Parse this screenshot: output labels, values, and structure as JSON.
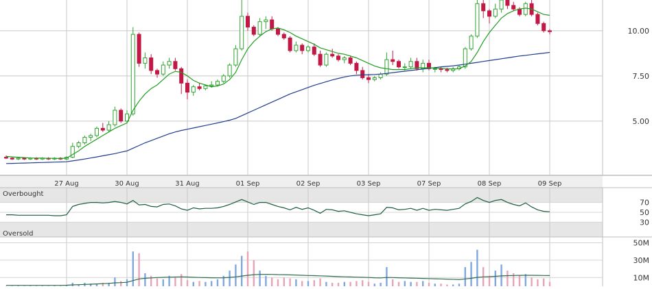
{
  "chart_data": {
    "type": "candlestick",
    "price_axis_ticks": [
      "10.00",
      "7.50",
      "5.00"
    ],
    "price_tick_values": [
      10.0,
      7.5,
      5.0
    ],
    "x_ticks": [
      "27 Aug",
      "30 Aug",
      "31 Aug",
      "01 Sep",
      "02 Sep",
      "03 Sep",
      "07 Sep",
      "08 Sep",
      "09 Sep"
    ],
    "x_tick_index": [
      10,
      20,
      30,
      40,
      50,
      60,
      70,
      80,
      90
    ],
    "indicator_panel": {
      "overbought_label": "Overbought",
      "oversold_label": "Oversold",
      "ticks": [
        "70",
        "50",
        "30"
      ],
      "tick_values": [
        70,
        50,
        30
      ],
      "ylim": [
        0,
        100
      ],
      "band_high": 70,
      "band_low": 30
    },
    "volume_panel": {
      "ticks": [
        "50M",
        "30M",
        "10M"
      ],
      "tick_values": [
        50,
        30,
        10
      ],
      "ylim": [
        0,
        65
      ]
    },
    "price_ylim": [
      2.0,
      11.7
    ],
    "colors": {
      "up": "#2ea32e",
      "down": "#c21845",
      "ma_short": "#1f9c1f",
      "ma_long": "#1e3c8c",
      "indicator_line": "#1a5c3c",
      "volume_up": "#7fa7e0",
      "volume_down": "#e9a3b6"
    },
    "candles": [
      [
        3.0,
        3.1,
        2.9,
        2.95
      ],
      [
        2.95,
        3.0,
        2.85,
        2.9
      ],
      [
        2.9,
        3.0,
        2.85,
        2.95
      ],
      [
        2.95,
        3.0,
        2.85,
        2.9
      ],
      [
        2.9,
        3.0,
        2.85,
        2.95
      ],
      [
        2.95,
        3.0,
        2.85,
        2.9
      ],
      [
        2.9,
        3.0,
        2.85,
        2.95
      ],
      [
        2.95,
        3.0,
        2.85,
        2.9
      ],
      [
        2.9,
        3.0,
        2.85,
        2.95
      ],
      [
        2.95,
        3.0,
        2.85,
        2.9
      ],
      [
        2.9,
        3.05,
        2.85,
        3.0
      ],
      [
        3.0,
        3.8,
        2.95,
        3.6
      ],
      [
        3.6,
        3.9,
        3.5,
        3.8
      ],
      [
        3.8,
        4.2,
        3.7,
        4.1
      ],
      [
        4.1,
        4.3,
        3.9,
        4.2
      ],
      [
        4.2,
        4.7,
        4.1,
        4.6
      ],
      [
        4.6,
        4.9,
        4.4,
        4.5
      ],
      [
        4.5,
        5.0,
        4.4,
        4.8
      ],
      [
        4.8,
        5.8,
        4.7,
        5.6
      ],
      [
        5.6,
        5.7,
        4.9,
        5.0
      ],
      [
        5.0,
        5.6,
        4.9,
        5.4
      ],
      [
        5.4,
        10.2,
        5.3,
        9.8
      ],
      [
        9.8,
        9.9,
        8.0,
        8.2
      ],
      [
        8.2,
        8.8,
        7.9,
        8.5
      ],
      [
        8.5,
        8.7,
        7.6,
        7.8
      ],
      [
        7.8,
        7.9,
        7.4,
        7.6
      ],
      [
        7.6,
        8.3,
        7.5,
        8.1
      ],
      [
        8.1,
        8.5,
        7.9,
        8.3
      ],
      [
        8.3,
        8.5,
        7.8,
        7.9
      ],
      [
        7.9,
        8.0,
        6.5,
        7.1
      ],
      [
        7.1,
        7.3,
        6.2,
        6.6
      ],
      [
        6.6,
        7.0,
        6.4,
        6.9
      ],
      [
        6.9,
        7.1,
        6.7,
        6.8
      ],
      [
        6.8,
        7.0,
        6.7,
        6.95
      ],
      [
        6.95,
        7.2,
        6.85,
        7.0
      ],
      [
        7.0,
        7.3,
        6.9,
        7.2
      ],
      [
        7.2,
        7.6,
        7.1,
        7.5
      ],
      [
        7.5,
        8.2,
        7.4,
        8.1
      ],
      [
        8.1,
        9.2,
        8.0,
        9.0
      ],
      [
        9.0,
        12.0,
        8.9,
        10.8
      ],
      [
        10.8,
        11.0,
        10.0,
        10.2
      ],
      [
        10.2,
        10.3,
        9.7,
        9.8
      ],
      [
        9.8,
        10.7,
        9.7,
        10.5
      ],
      [
        10.5,
        10.8,
        10.1,
        10.6
      ],
      [
        10.6,
        10.8,
        10.0,
        10.1
      ],
      [
        10.1,
        10.2,
        9.7,
        9.8
      ],
      [
        9.8,
        9.9,
        9.5,
        9.6
      ],
      [
        9.6,
        9.7,
        8.8,
        8.9
      ],
      [
        8.9,
        9.4,
        8.8,
        9.2
      ],
      [
        9.2,
        9.3,
        8.7,
        8.9
      ],
      [
        8.9,
        9.2,
        8.8,
        9.1
      ],
      [
        9.1,
        9.3,
        8.6,
        8.7
      ],
      [
        8.7,
        8.9,
        8.0,
        8.1
      ],
      [
        8.1,
        8.8,
        8.0,
        8.7
      ],
      [
        8.7,
        9.0,
        8.5,
        8.6
      ],
      [
        8.6,
        8.7,
        8.3,
        8.4
      ],
      [
        8.4,
        8.6,
        8.2,
        8.5
      ],
      [
        8.5,
        8.6,
        8.1,
        8.2
      ],
      [
        8.2,
        8.3,
        7.6,
        7.8
      ],
      [
        7.8,
        8.0,
        7.3,
        7.4
      ],
      [
        7.4,
        7.6,
        7.1,
        7.3
      ],
      [
        7.3,
        7.5,
        7.2,
        7.4
      ],
      [
        7.4,
        7.7,
        7.3,
        7.6
      ],
      [
        7.6,
        8.8,
        7.5,
        8.4
      ],
      [
        8.4,
        8.9,
        8.1,
        8.3
      ],
      [
        8.3,
        8.4,
        7.9,
        8.0
      ],
      [
        8.0,
        8.2,
        7.8,
        8.0
      ],
      [
        8.0,
        8.5,
        7.9,
        8.3
      ],
      [
        8.3,
        8.5,
        7.8,
        7.9
      ],
      [
        7.9,
        8.4,
        7.7,
        8.2
      ],
      [
        8.2,
        8.4,
        7.8,
        7.9
      ],
      [
        7.9,
        8.0,
        7.7,
        7.9
      ],
      [
        7.9,
        8.0,
        7.7,
        7.85
      ],
      [
        7.85,
        7.95,
        7.7,
        7.8
      ],
      [
        7.8,
        8.0,
        7.7,
        7.9
      ],
      [
        7.9,
        8.1,
        7.8,
        8.0
      ],
      [
        8.0,
        9.1,
        7.9,
        9.0
      ],
      [
        9.0,
        9.8,
        8.9,
        9.7
      ],
      [
        9.7,
        12.1,
        9.6,
        11.5
      ],
      [
        11.5,
        11.9,
        10.7,
        11.1
      ],
      [
        11.1,
        11.2,
        10.4,
        10.8
      ],
      [
        10.8,
        11.5,
        10.7,
        11.2
      ],
      [
        11.2,
        12.4,
        11.0,
        11.7
      ],
      [
        11.7,
        11.8,
        11.2,
        11.4
      ],
      [
        11.4,
        11.6,
        11.1,
        11.2
      ],
      [
        11.2,
        11.3,
        10.8,
        10.9
      ],
      [
        10.9,
        11.6,
        10.8,
        11.5
      ],
      [
        11.5,
        11.7,
        10.8,
        10.9
      ],
      [
        10.9,
        11.0,
        10.3,
        10.4
      ],
      [
        10.4,
        10.5,
        9.9,
        10.0
      ],
      [
        10.0,
        10.1,
        9.8,
        9.95
      ]
    ],
    "ma_short": [
      3.05,
      3.02,
      3.0,
      2.98,
      2.96,
      2.95,
      2.95,
      2.94,
      2.94,
      2.93,
      2.95,
      3.15,
      3.35,
      3.6,
      3.8,
      4.0,
      4.2,
      4.4,
      4.6,
      4.75,
      4.9,
      5.6,
      6.1,
      6.5,
      6.8,
      7.0,
      7.3,
      7.6,
      7.75,
      7.7,
      7.5,
      7.25,
      7.1,
      7.0,
      6.9,
      6.95,
      7.05,
      7.3,
      7.7,
      8.4,
      9.0,
      9.4,
      9.7,
      9.95,
      10.1,
      10.15,
      10.05,
      9.9,
      9.7,
      9.55,
      9.4,
      9.25,
      9.05,
      8.95,
      8.85,
      8.75,
      8.7,
      8.6,
      8.5,
      8.35,
      8.2,
      8.05,
      7.95,
      7.9,
      7.85,
      7.85,
      7.85,
      7.9,
      7.95,
      7.95,
      7.95,
      7.93,
      7.92,
      7.9,
      7.88,
      7.9,
      8.05,
      8.3,
      8.8,
      9.4,
      9.9,
      10.3,
      10.7,
      10.95,
      11.1,
      11.2,
      11.25,
      11.2,
      11.05,
      10.9,
      10.85
    ],
    "ma_long": [
      2.65,
      2.66,
      2.67,
      2.68,
      2.69,
      2.7,
      2.71,
      2.72,
      2.73,
      2.74,
      2.75,
      2.8,
      2.85,
      2.9,
      2.96,
      3.02,
      3.08,
      3.14,
      3.2,
      3.28,
      3.35,
      3.5,
      3.65,
      3.8,
      3.92,
      4.05,
      4.17,
      4.3,
      4.4,
      4.48,
      4.55,
      4.62,
      4.69,
      4.76,
      4.83,
      4.9,
      4.97,
      5.05,
      5.15,
      5.3,
      5.45,
      5.6,
      5.75,
      5.9,
      6.05,
      6.2,
      6.35,
      6.5,
      6.62,
      6.74,
      6.86,
      6.98,
      7.08,
      7.18,
      7.28,
      7.36,
      7.44,
      7.5,
      7.54,
      7.56,
      7.57,
      7.58,
      7.6,
      7.64,
      7.68,
      7.72,
      7.76,
      7.8,
      7.84,
      7.88,
      7.92,
      7.96,
      8.0,
      8.03,
      8.06,
      8.1,
      8.15,
      8.2,
      8.25,
      8.3,
      8.35,
      8.4,
      8.45,
      8.5,
      8.55,
      8.6,
      8.64,
      8.68,
      8.72,
      8.76,
      8.8
    ],
    "indicator": [
      45,
      45,
      44,
      44,
      44,
      44,
      44,
      44,
      43,
      43,
      45,
      62,
      66,
      68,
      70,
      70,
      69,
      70,
      72,
      70,
      67,
      74,
      65,
      66,
      62,
      61,
      66,
      67,
      63,
      57,
      54,
      59,
      57,
      58,
      58,
      59,
      62,
      66,
      71,
      76,
      71,
      66,
      70,
      70,
      66,
      62,
      59,
      55,
      60,
      56,
      59,
      54,
      48,
      56,
      55,
      52,
      53,
      50,
      47,
      45,
      43,
      45,
      47,
      60,
      59,
      55,
      56,
      58,
      54,
      58,
      54,
      56,
      55,
      54,
      56,
      58,
      67,
      72,
      80,
      74,
      70,
      74,
      76,
      70,
      66,
      63,
      69,
      61,
      55,
      52,
      51
    ],
    "volume": [
      0.5,
      0.5,
      0.5,
      0.5,
      0.5,
      0.5,
      0.5,
      0.5,
      0.5,
      0.5,
      1,
      4,
      2,
      4,
      3,
      3,
      4,
      4,
      10,
      6,
      8,
      40,
      38,
      15,
      12,
      9,
      8,
      12,
      10,
      14,
      7,
      5,
      6,
      5,
      6,
      8,
      12,
      18,
      25,
      35,
      40,
      30,
      18,
      12,
      10,
      8,
      10,
      9,
      8,
      6,
      6,
      7,
      9,
      5,
      4,
      4,
      5,
      5,
      6,
      7,
      5,
      3,
      4,
      22,
      8,
      5,
      6,
      5,
      5,
      6,
      4,
      3,
      3,
      2,
      2,
      3,
      22,
      28,
      42,
      22,
      12,
      18,
      25,
      18,
      15,
      12,
      14,
      10,
      8,
      9,
      5
    ],
    "volume_avg": [
      1,
      1,
      1,
      1,
      1,
      1,
      1,
      1,
      1,
      1,
      1.2,
      1.6,
      1.8,
      2.1,
      2.4,
      2.7,
      3,
      3.3,
      3.9,
      4.2,
      4.6,
      6.5,
      8.4,
      9.1,
      9.6,
      10,
      10.2,
      10.5,
      10.6,
      10.8,
      10.6,
      10.3,
      10.1,
      9.9,
      9.8,
      9.7,
      9.8,
      10.2,
      10.8,
      11.7,
      12.6,
      13.3,
      13.6,
      13.7,
      13.6,
      13.4,
      13.3,
      13.1,
      12.9,
      12.6,
      12.4,
      12.2,
      12,
      11.7,
      11.4,
      11.1,
      10.9,
      10.7,
      10.5,
      10.3,
      10.1,
      9.8,
      9.6,
      10.1,
      10,
      9.8,
      9.6,
      9.4,
      9.2,
      9,
      8.8,
      8.6,
      8.4,
      8.2,
      8,
      7.8,
      8.4,
      9.1,
      10.2,
      10.8,
      11,
      11.4,
      11.9,
      12.2,
      12.4,
      12.5,
      12.6,
      12.6,
      12.5,
      12.4,
      12.3
    ]
  }
}
